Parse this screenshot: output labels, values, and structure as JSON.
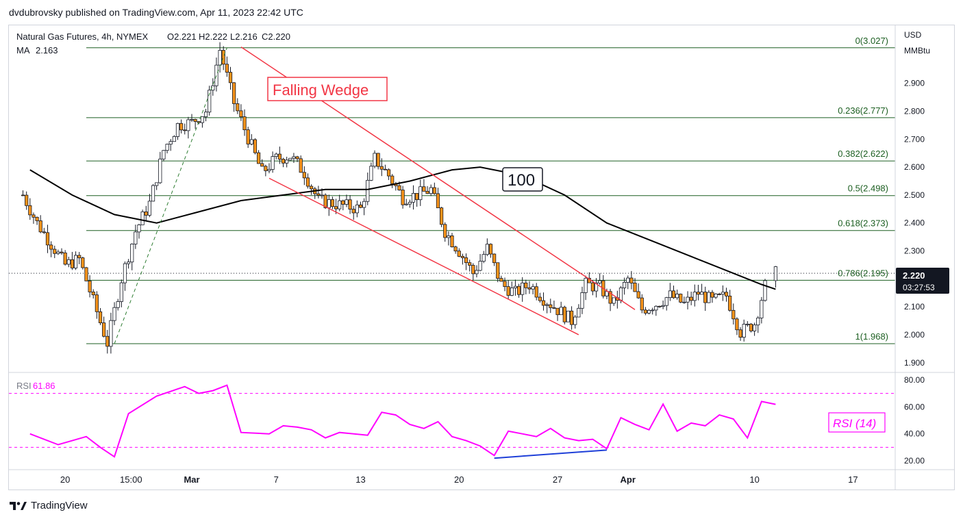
{
  "header": {
    "publisher": "dvdubrovsky published on TradingView.com, Apr 11, 2023 22:42 UTC"
  },
  "legend": {
    "symbol": "Natural Gas Futures, 4h, NYMEX",
    "ohlc": [
      {
        "k": "O",
        "v": "2.221"
      },
      {
        "k": "H",
        "v": "2.222"
      },
      {
        "k": "L",
        "v": "2.216"
      },
      {
        "k": "C",
        "v": "2.220"
      }
    ],
    "ma_label": "MA",
    "ma_value": "2.163"
  },
  "price_axis": {
    "currency": "USD",
    "unit": "MMBtu",
    "ticks": [
      "2.900",
      "2.800",
      "2.700",
      "2.600",
      "2.500",
      "2.400",
      "2.300",
      "2.100",
      "2.000",
      "1.900"
    ],
    "last_price": "2.220",
    "countdown": "03:27:53"
  },
  "annotations": {
    "pattern": "Falling Wedge",
    "ma_period": "100",
    "rsi_box": "RSI (14)"
  },
  "rsi": {
    "label": "RSI",
    "value": "61.86",
    "ticks": [
      "80.00",
      "60.00",
      "40.00",
      "20.00"
    ]
  },
  "time_axis": {
    "labels": [
      "20",
      "15:00",
      "Mar",
      "7",
      "13",
      "20",
      "27",
      "Apr",
      "10",
      "17"
    ]
  },
  "footer": {
    "brand": "TradingView"
  },
  "colors": {
    "up": "#ffffff",
    "down": "#f7931a",
    "wick": "#131722",
    "fib": "#1b5e20",
    "wedge": "#f23645",
    "ma": "#000000",
    "rsi": "#ff00ff",
    "divergence": "#1e3fd8"
  },
  "chart_data": {
    "type": "candlestick",
    "title": "Natural Gas Futures, 4h, NYMEX",
    "y_unit": "USD/MMBtu",
    "ylim": [
      1.87,
      3.1
    ],
    "fib_levels": [
      {
        "label": "0(3.027)",
        "value": 3.027
      },
      {
        "label": "0.236(2.777)",
        "value": 2.777
      },
      {
        "label": "0.382(2.622)",
        "value": 2.622
      },
      {
        "label": "0.5(2.498)",
        "value": 2.498
      },
      {
        "label": "0.618(2.373)",
        "value": 2.373
      },
      {
        "label": "0.786(2.195)",
        "value": 2.195
      },
      {
        "label": "1(1.968)",
        "value": 1.968
      }
    ],
    "price_path": [
      {
        "date": "2023-02-17",
        "close": 2.5
      },
      {
        "date": "2023-02-18",
        "close": 2.4
      },
      {
        "date": "2023-02-20",
        "close": 2.25
      },
      {
        "date": "2023-02-21",
        "close": 2.27
      },
      {
        "date": "2023-02-22",
        "close": 2.12
      },
      {
        "date": "2023-02-23",
        "close": 1.97
      },
      {
        "date": "2023-02-24",
        "close": 2.2
      },
      {
        "date": "2023-02-25",
        "close": 2.37
      },
      {
        "date": "2023-02-26",
        "close": 2.47
      },
      {
        "date": "2023-02-27",
        "close": 2.66
      },
      {
        "date": "2023-02-28",
        "close": 2.75
      },
      {
        "date": "2023-03-01",
        "close": 2.76
      },
      {
        "date": "2023-03-02",
        "close": 2.8
      },
      {
        "date": "2023-03-03",
        "close": 3.02
      },
      {
        "date": "2023-03-04",
        "close": 2.83
      },
      {
        "date": "2023-03-06",
        "close": 2.58
      },
      {
        "date": "2023-03-07",
        "close": 2.63
      },
      {
        "date": "2023-03-08",
        "close": 2.64
      },
      {
        "date": "2023-03-09",
        "close": 2.58
      },
      {
        "date": "2023-03-10",
        "close": 2.48
      },
      {
        "date": "2023-03-11",
        "close": 2.47
      },
      {
        "date": "2023-03-13",
        "close": 2.45
      },
      {
        "date": "2023-03-14",
        "close": 2.63
      },
      {
        "date": "2023-03-15",
        "close": 2.57
      },
      {
        "date": "2023-03-16",
        "close": 2.49
      },
      {
        "date": "2023-03-17",
        "close": 2.5
      },
      {
        "date": "2023-03-18",
        "close": 2.52
      },
      {
        "date": "2023-03-19",
        "close": 2.37
      },
      {
        "date": "2023-03-20",
        "close": 2.3
      },
      {
        "date": "2023-03-21",
        "close": 2.22
      },
      {
        "date": "2023-03-22",
        "close": 2.31
      },
      {
        "date": "2023-03-23",
        "close": 2.18
      },
      {
        "date": "2023-03-24",
        "close": 2.15
      },
      {
        "date": "2023-03-25",
        "close": 2.18
      },
      {
        "date": "2023-03-26",
        "close": 2.13
      },
      {
        "date": "2023-03-27",
        "close": 2.09
      },
      {
        "date": "2023-03-28",
        "close": 2.05
      },
      {
        "date": "2023-03-29",
        "close": 2.18
      },
      {
        "date": "2023-03-30",
        "close": 2.17
      },
      {
        "date": "2023-03-31",
        "close": 2.11
      },
      {
        "date": "2023-04-01",
        "close": 2.2
      },
      {
        "date": "2023-04-02",
        "close": 2.09
      },
      {
        "date": "2023-04-03",
        "close": 2.11
      },
      {
        "date": "2023-04-04",
        "close": 2.14
      },
      {
        "date": "2023-04-05",
        "close": 2.11
      },
      {
        "date": "2023-04-06",
        "close": 2.15
      },
      {
        "date": "2023-04-07",
        "close": 2.12
      },
      {
        "date": "2023-04-08",
        "close": 2.14
      },
      {
        "date": "2023-04-09",
        "close": 2.01
      },
      {
        "date": "2023-04-10",
        "close": 2.04
      },
      {
        "date": "2023-04-11",
        "close": 2.22
      }
    ],
    "ma100": [
      {
        "date": "2023-02-17",
        "value": 2.59
      },
      {
        "date": "2023-02-20",
        "value": 2.5
      },
      {
        "date": "2023-02-23",
        "value": 2.43
      },
      {
        "date": "2023-02-26",
        "value": 2.4
      },
      {
        "date": "2023-03-01",
        "value": 2.44
      },
      {
        "date": "2023-03-04",
        "value": 2.48
      },
      {
        "date": "2023-03-07",
        "value": 2.5
      },
      {
        "date": "2023-03-10",
        "value": 2.52
      },
      {
        "date": "2023-03-13",
        "value": 2.52
      },
      {
        "date": "2023-03-16",
        "value": 2.55
      },
      {
        "date": "2023-03-19",
        "value": 2.59
      },
      {
        "date": "2023-03-21",
        "value": 2.6
      },
      {
        "date": "2023-03-24",
        "value": 2.57
      },
      {
        "date": "2023-03-27",
        "value": 2.5
      },
      {
        "date": "2023-03-30",
        "value": 2.4
      },
      {
        "date": "2023-04-02",
        "value": 2.34
      },
      {
        "date": "2023-04-05",
        "value": 2.28
      },
      {
        "date": "2023-04-08",
        "value": 2.22
      },
      {
        "date": "2023-04-10",
        "value": 2.18
      },
      {
        "date": "2023-04-11",
        "value": 2.163
      }
    ],
    "wedge_upper": [
      {
        "date": "2023-03-04",
        "value": 3.03
      },
      {
        "date": "2023-04-01",
        "value": 2.09
      }
    ],
    "wedge_lower": [
      {
        "date": "2023-03-06",
        "value": 2.56
      },
      {
        "date": "2023-03-28",
        "value": 2.0
      }
    ],
    "rsi_series": [
      {
        "date": "2023-02-17",
        "value": 40
      },
      {
        "date": "2023-02-19",
        "value": 32
      },
      {
        "date": "2023-02-21",
        "value": 38
      },
      {
        "date": "2023-02-22",
        "value": 30
      },
      {
        "date": "2023-02-23",
        "value": 23
      },
      {
        "date": "2023-02-24",
        "value": 55
      },
      {
        "date": "2023-02-26",
        "value": 68
      },
      {
        "date": "2023-02-28",
        "value": 75
      },
      {
        "date": "2023-03-01",
        "value": 70
      },
      {
        "date": "2023-03-02",
        "value": 72
      },
      {
        "date": "2023-03-03",
        "value": 76
      },
      {
        "date": "2023-03-04",
        "value": 41
      },
      {
        "date": "2023-03-06",
        "value": 40
      },
      {
        "date": "2023-03-07",
        "value": 46
      },
      {
        "date": "2023-03-08",
        "value": 45
      },
      {
        "date": "2023-03-09",
        "value": 43
      },
      {
        "date": "2023-03-10",
        "value": 37
      },
      {
        "date": "2023-03-11",
        "value": 41
      },
      {
        "date": "2023-03-13",
        "value": 39
      },
      {
        "date": "2023-03-14",
        "value": 56
      },
      {
        "date": "2023-03-15",
        "value": 54
      },
      {
        "date": "2023-03-16",
        "value": 47
      },
      {
        "date": "2023-03-17",
        "value": 44
      },
      {
        "date": "2023-03-18",
        "value": 49
      },
      {
        "date": "2023-03-19",
        "value": 38
      },
      {
        "date": "2023-03-20",
        "value": 35
      },
      {
        "date": "2023-03-21",
        "value": 31
      },
      {
        "date": "2023-03-22",
        "value": 24
      },
      {
        "date": "2023-03-23",
        "value": 42
      },
      {
        "date": "2023-03-24",
        "value": 40
      },
      {
        "date": "2023-03-25",
        "value": 38
      },
      {
        "date": "2023-03-26",
        "value": 44
      },
      {
        "date": "2023-03-27",
        "value": 37
      },
      {
        "date": "2023-03-28",
        "value": 35
      },
      {
        "date": "2023-03-29",
        "value": 36
      },
      {
        "date": "2023-03-30",
        "value": 29
      },
      {
        "date": "2023-03-31",
        "value": 52
      },
      {
        "date": "2023-04-01",
        "value": 47
      },
      {
        "date": "2023-04-02",
        "value": 43
      },
      {
        "date": "2023-04-03",
        "value": 62
      },
      {
        "date": "2023-04-04",
        "value": 42
      },
      {
        "date": "2023-04-05",
        "value": 48
      },
      {
        "date": "2023-04-06",
        "value": 46
      },
      {
        "date": "2023-04-07",
        "value": 54
      },
      {
        "date": "2023-04-08",
        "value": 51
      },
      {
        "date": "2023-04-09",
        "value": 37
      },
      {
        "date": "2023-04-10",
        "value": 64
      },
      {
        "date": "2023-04-11",
        "value": 61.86
      }
    ],
    "rsi_levels": [
      70,
      30
    ],
    "rsi_ylim": [
      15,
      85
    ],
    "divergence": [
      {
        "date": "2023-03-22",
        "value": 22
      },
      {
        "date": "2023-03-30",
        "value": 28
      }
    ]
  }
}
